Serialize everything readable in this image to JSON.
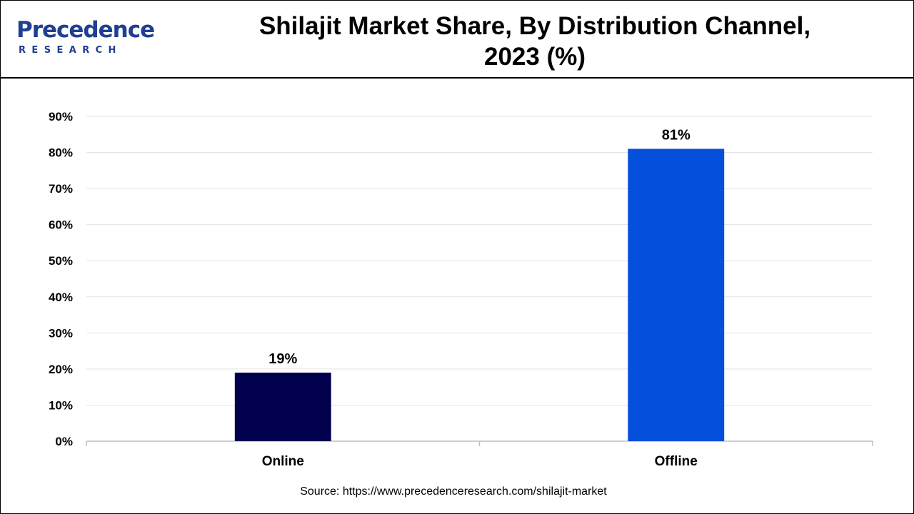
{
  "logo": {
    "word": "Precedence",
    "sub": "RESEARCH"
  },
  "title_lines": [
    "Shilajit Market Share, By Distribution Channel,",
    "2023 (%)"
  ],
  "source": "Source: https://www.precedenceresearch.com/shilajit-market",
  "chart_data": {
    "type": "bar",
    "title": "Shilajit Market Share, By Distribution Channel, 2023 (%)",
    "categories": [
      "Online",
      "Offline"
    ],
    "values": [
      19,
      81
    ],
    "value_labels": [
      "19%",
      "81%"
    ],
    "colors": [
      "#00004d",
      "#0450dc"
    ],
    "ylim": [
      0,
      90
    ],
    "yticks": [
      0,
      10,
      20,
      30,
      40,
      50,
      60,
      70,
      80,
      90
    ],
    "ytick_labels": [
      "0%",
      "10%",
      "20%",
      "30%",
      "40%",
      "50%",
      "60%",
      "70%",
      "80%",
      "90%"
    ],
    "grid": true,
    "legend": "none"
  }
}
